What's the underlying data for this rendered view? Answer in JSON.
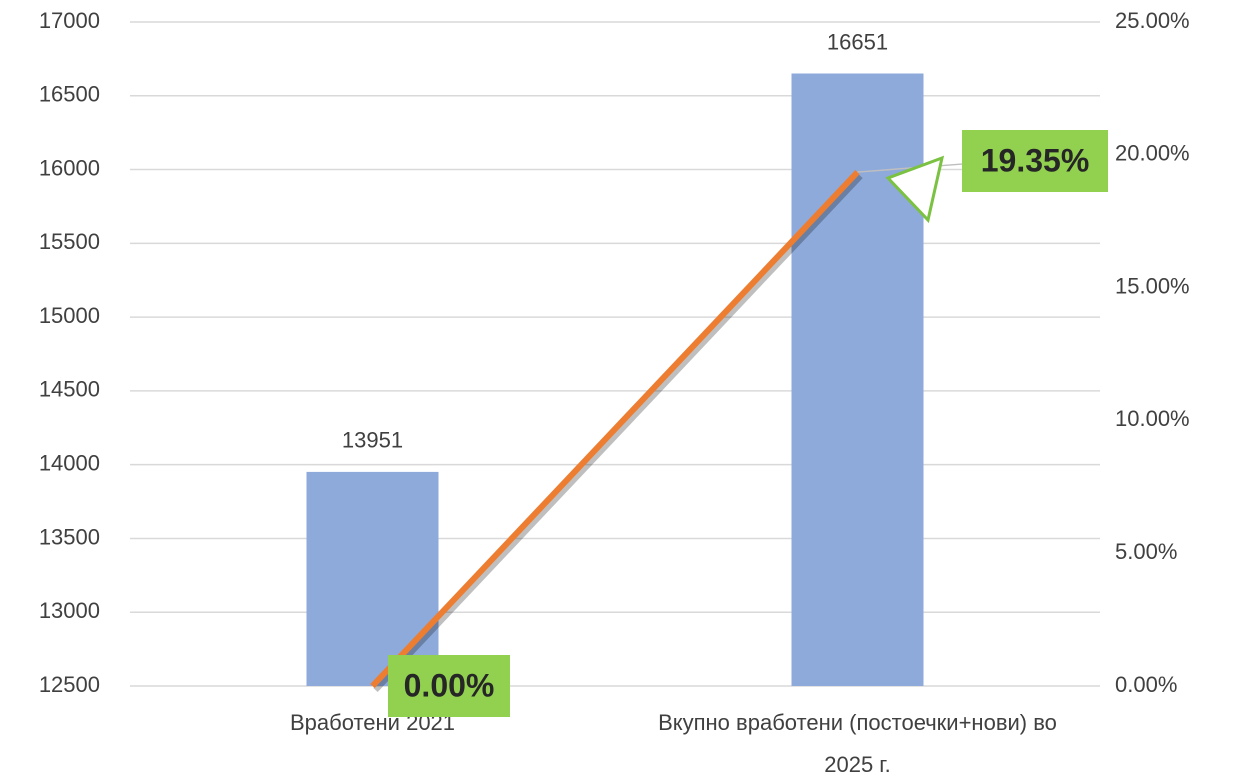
{
  "chart_data": {
    "type": "bar_line",
    "categories": [
      "Вработени 2021",
      "Вкупно вработени (постоечки+нови) во 2025 г."
    ],
    "series": [
      {
        "type": "bar",
        "color": "#8eaadb",
        "values": [
          13951,
          16651
        ]
      },
      {
        "type": "line",
        "axis": "y2",
        "color": "#ed7d31",
        "values": [
          0,
          19.35
        ],
        "value_labels": [
          "0.00%",
          "19.35%"
        ],
        "label_color": "#92d050"
      }
    ],
    "ylim": [
      12500,
      17000
    ],
    "yticks": [
      12500,
      13000,
      13500,
      14000,
      14500,
      15000,
      15500,
      16000,
      16500,
      17000
    ],
    "y2lim": [
      0,
      25
    ],
    "y2ticks": [
      {
        "value": 0,
        "label": "0.00%"
      },
      {
        "value": 5,
        "label": "5.00%"
      },
      {
        "value": 10,
        "label": "10.00%"
      },
      {
        "value": 15,
        "label": "15.00%"
      },
      {
        "value": 20,
        "label": "20.00%"
      },
      {
        "value": 25,
        "label": "25.00%"
      }
    ],
    "grid": true
  }
}
